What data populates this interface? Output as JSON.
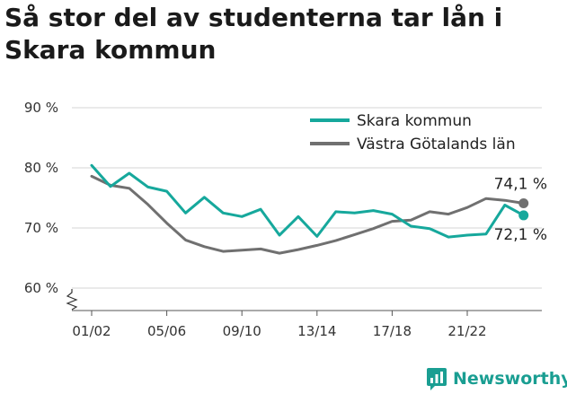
{
  "title": "Så stor del av studenterna tar lån i Skara kommun",
  "brand": {
    "name": "Newsworthy"
  },
  "colors": {
    "skara": "#16a89c",
    "vg": "#707070",
    "grid": "#d6d6d6",
    "text": "#333333",
    "brand": "#1a9e92"
  },
  "chart_data": {
    "type": "line",
    "title": "Så stor del av studenterna tar lån i Skara kommun",
    "xlabel": "",
    "ylabel": "",
    "ylim": [
      58,
      92
    ],
    "yticks": [
      {
        "value": 60,
        "label": "60 %"
      },
      {
        "value": 70,
        "label": "70 %"
      },
      {
        "value": 80,
        "label": "80 %"
      },
      {
        "value": 90,
        "label": "90 %"
      }
    ],
    "y_axis_break": true,
    "grid": true,
    "legend": "top-right",
    "x": [
      "01/02",
      "02/03",
      "03/04",
      "04/05",
      "05/06",
      "06/07",
      "07/08",
      "08/09",
      "09/10",
      "10/11",
      "11/12",
      "12/13",
      "13/14",
      "14/15",
      "15/16",
      "16/17",
      "17/18",
      "18/19",
      "19/20",
      "20/21",
      "21/22",
      "22/23",
      "23/24",
      "24/25"
    ],
    "xtick_labels": [
      "01/02",
      "05/06",
      "09/10",
      "13/14",
      "17/18",
      "21/22"
    ],
    "series": [
      {
        "name": "Skara kommun",
        "color": "#16a89c",
        "values": [
          80.4,
          76.9,
          79.1,
          76.8,
          76.1,
          72.5,
          75.1,
          72.5,
          71.9,
          73.1,
          68.8,
          71.9,
          68.6,
          72.7,
          72.5,
          72.9,
          72.3,
          70.3,
          69.9,
          68.5,
          68.8,
          69.0,
          73.8,
          72.1
        ],
        "end_label": "72,1 %"
      },
      {
        "name": "Västra Götalands län",
        "color": "#707070",
        "values": [
          78.6,
          77.1,
          76.6,
          73.9,
          70.8,
          68.0,
          66.9,
          66.1,
          66.3,
          66.5,
          65.8,
          66.4,
          67.1,
          67.9,
          68.9,
          69.9,
          71.1,
          71.3,
          72.7,
          72.3,
          73.4,
          74.9,
          74.6,
          74.1
        ],
        "end_label": "74,1 %"
      }
    ]
  }
}
